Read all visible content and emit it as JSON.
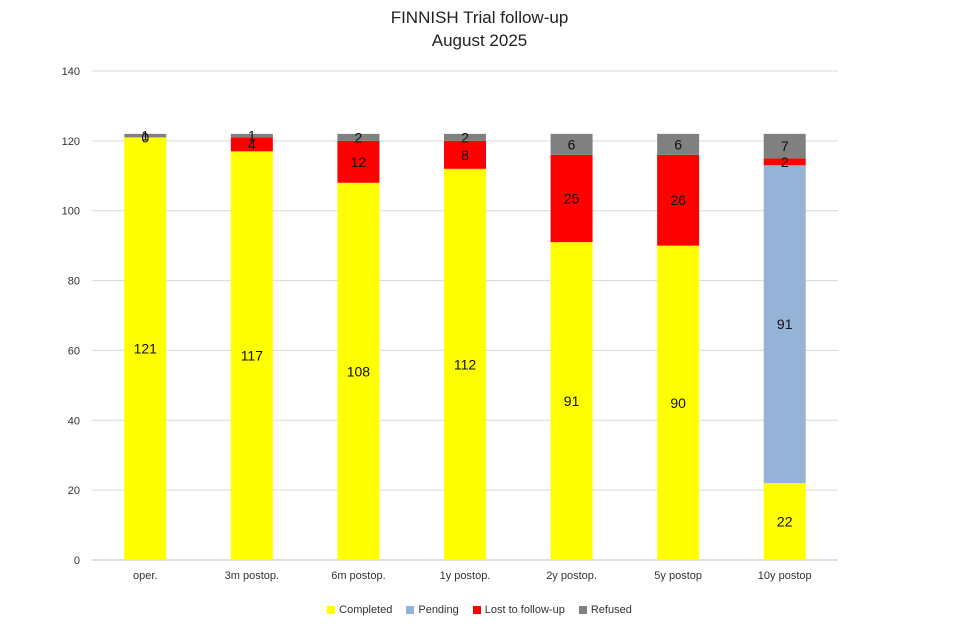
{
  "chart_data": {
    "type": "bar",
    "stacked": true,
    "title": "FINNISH Trial follow-up",
    "subtitle": "August 2025",
    "categories": [
      "oper.",
      "3m postop.",
      "6m postop.",
      "1y postop.",
      "2y postop.",
      "5y postop",
      "10y postop"
    ],
    "series": [
      {
        "name": "Completed",
        "color": "#FFFF00",
        "values": [
          121,
          117,
          108,
          112,
          91,
          90,
          22
        ]
      },
      {
        "name": "Pending",
        "color": "#95B3D7",
        "values": [
          0,
          0,
          0,
          0,
          0,
          0,
          91
        ]
      },
      {
        "name": "Lost to follow-up",
        "color": "#FF0000",
        "values": [
          0,
          4,
          12,
          8,
          25,
          26,
          2
        ]
      },
      {
        "name": "Refused",
        "color": "#808080",
        "values": [
          1,
          1,
          2,
          2,
          6,
          6,
          7
        ]
      }
    ],
    "ylim": [
      0,
      140
    ],
    "yticks": [
      0,
      20,
      40,
      60,
      80,
      100,
      120,
      140
    ],
    "grid": true,
    "legend_position": "bottom"
  }
}
